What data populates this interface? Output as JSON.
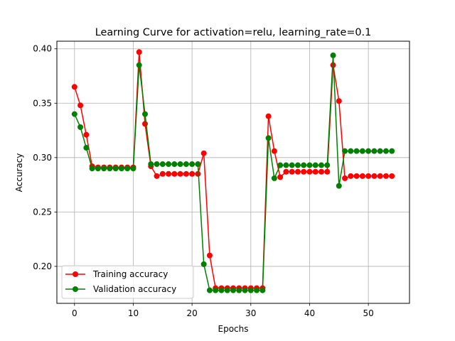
{
  "chart_data": {
    "type": "line",
    "title": "Learning Curve for activation=relu, learning_rate=0.1",
    "xlabel": "Epochs",
    "ylabel": "Accuracy",
    "xlim": [
      -3,
      57
    ],
    "ylim": [
      0.166,
      0.407
    ],
    "xticks": [
      0,
      10,
      20,
      30,
      40,
      50
    ],
    "yticks": [
      0.2,
      0.25,
      0.3,
      0.35,
      0.4
    ],
    "ytick_labels": [
      "0.20",
      "0.25",
      "0.30",
      "0.35",
      "0.40"
    ],
    "grid": true,
    "legend_position": "lower-left",
    "series": [
      {
        "name": "Training accuracy",
        "color": "#ff0000",
        "marker": "circle",
        "x": [
          0,
          1,
          2,
          3,
          4,
          5,
          6,
          7,
          8,
          9,
          10,
          11,
          12,
          13,
          14,
          15,
          16,
          17,
          18,
          19,
          20,
          21,
          22,
          23,
          24,
          25,
          26,
          27,
          28,
          29,
          30,
          31,
          32,
          33,
          34,
          35,
          36,
          37,
          38,
          39,
          40,
          41,
          42,
          43,
          44,
          45,
          46,
          47,
          48,
          49,
          50,
          51,
          52,
          53,
          54
        ],
        "values": [
          0.365,
          0.348,
          0.321,
          0.292,
          0.291,
          0.291,
          0.291,
          0.291,
          0.291,
          0.291,
          0.291,
          0.397,
          0.331,
          0.292,
          0.283,
          0.285,
          0.285,
          0.285,
          0.285,
          0.285,
          0.285,
          0.285,
          0.304,
          0.21,
          0.18,
          0.18,
          0.18,
          0.18,
          0.18,
          0.18,
          0.18,
          0.18,
          0.18,
          0.338,
          0.306,
          0.282,
          0.287,
          0.287,
          0.287,
          0.287,
          0.287,
          0.287,
          0.287,
          0.287,
          0.385,
          0.352,
          0.281,
          0.283,
          0.283,
          0.283,
          0.283,
          0.283,
          0.283,
          0.283,
          0.283
        ]
      },
      {
        "name": "Validation accuracy",
        "color": "#008000",
        "marker": "circle",
        "x": [
          0,
          1,
          2,
          3,
          4,
          5,
          6,
          7,
          8,
          9,
          10,
          11,
          12,
          13,
          14,
          15,
          16,
          17,
          18,
          19,
          20,
          21,
          22,
          23,
          24,
          25,
          26,
          27,
          28,
          29,
          30,
          31,
          32,
          33,
          34,
          35,
          36,
          37,
          38,
          39,
          40,
          41,
          42,
          43,
          44,
          45,
          46,
          47,
          48,
          49,
          50,
          51,
          52,
          53,
          54
        ],
        "values": [
          0.34,
          0.328,
          0.309,
          0.29,
          0.29,
          0.29,
          0.29,
          0.29,
          0.29,
          0.29,
          0.29,
          0.385,
          0.34,
          0.294,
          0.294,
          0.294,
          0.294,
          0.294,
          0.294,
          0.294,
          0.294,
          0.294,
          0.202,
          0.178,
          0.178,
          0.178,
          0.178,
          0.178,
          0.178,
          0.178,
          0.178,
          0.178,
          0.178,
          0.318,
          0.281,
          0.293,
          0.293,
          0.293,
          0.293,
          0.293,
          0.293,
          0.293,
          0.293,
          0.293,
          0.394,
          0.274,
          0.306,
          0.306,
          0.306,
          0.306,
          0.306,
          0.306,
          0.306,
          0.306,
          0.306
        ]
      }
    ]
  }
}
